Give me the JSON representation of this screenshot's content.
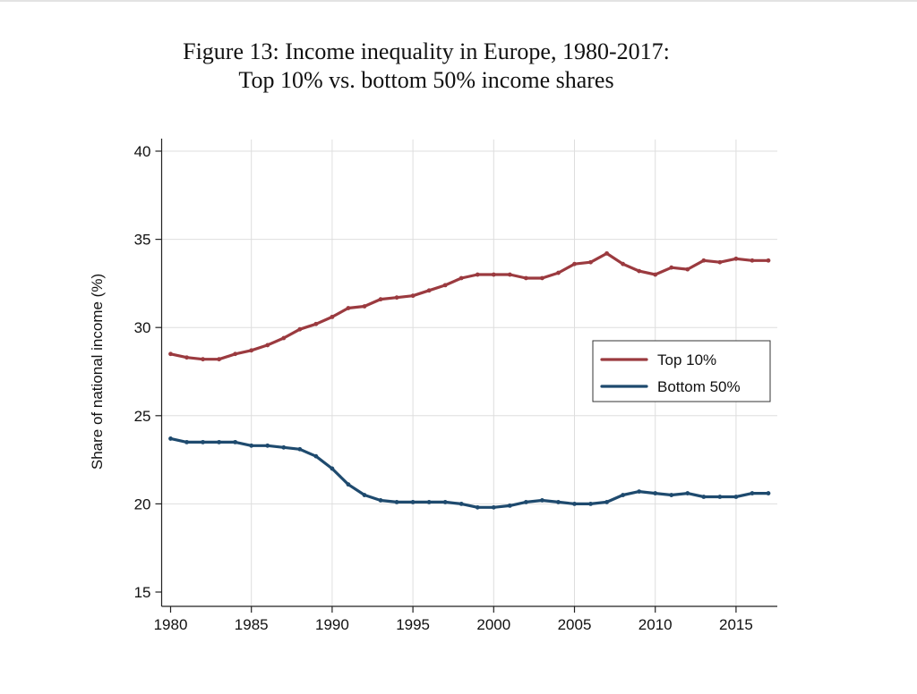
{
  "figure": {
    "title_line1": "Figure 13: Income inequality in Europe, 1980-2017:",
    "title_line2": "Top 10% vs. bottom 50% income shares"
  },
  "chart_data": {
    "type": "line",
    "title": "Figure 13: Income inequality in Europe, 1980-2017: Top 10% vs. bottom 50% income shares",
    "xlabel": "",
    "ylabel": "Share of national income (%)",
    "xlim": [
      1980,
      2017
    ],
    "ylim": [
      15,
      40
    ],
    "xticks": [
      1980,
      1985,
      1990,
      1995,
      2000,
      2005,
      2010,
      2015
    ],
    "yticks": [
      15,
      20,
      25,
      30,
      35,
      40
    ],
    "grid": true,
    "legend_position": "right",
    "x": [
      1980,
      1981,
      1982,
      1983,
      1984,
      1985,
      1986,
      1987,
      1988,
      1989,
      1990,
      1991,
      1992,
      1993,
      1994,
      1995,
      1996,
      1997,
      1998,
      1999,
      2000,
      2001,
      2002,
      2003,
      2004,
      2005,
      2006,
      2007,
      2008,
      2009,
      2010,
      2011,
      2012,
      2013,
      2014,
      2015,
      2016,
      2017
    ],
    "series": [
      {
        "name": "Top 10%",
        "color": "#9b3a3f",
        "values": [
          28.5,
          28.3,
          28.2,
          28.2,
          28.5,
          28.7,
          29.0,
          29.4,
          29.9,
          30.2,
          30.6,
          31.1,
          31.2,
          31.6,
          31.7,
          31.8,
          32.1,
          32.4,
          32.8,
          33.0,
          33.0,
          33.0,
          32.8,
          32.8,
          33.1,
          33.6,
          33.7,
          34.2,
          33.6,
          33.2,
          33.0,
          33.4,
          33.3,
          33.8,
          33.7,
          33.9,
          33.8,
          33.8
        ]
      },
      {
        "name": "Bottom 50%",
        "color": "#1e4a6e",
        "values": [
          23.7,
          23.5,
          23.5,
          23.5,
          23.5,
          23.3,
          23.3,
          23.2,
          23.1,
          22.7,
          22.0,
          21.1,
          20.5,
          20.2,
          20.1,
          20.1,
          20.1,
          20.1,
          20.0,
          19.8,
          19.8,
          19.9,
          20.1,
          20.2,
          20.1,
          20.0,
          20.0,
          20.1,
          20.5,
          20.7,
          20.6,
          20.5,
          20.6,
          20.4,
          20.4,
          20.4,
          20.6,
          20.6
        ]
      }
    ]
  }
}
